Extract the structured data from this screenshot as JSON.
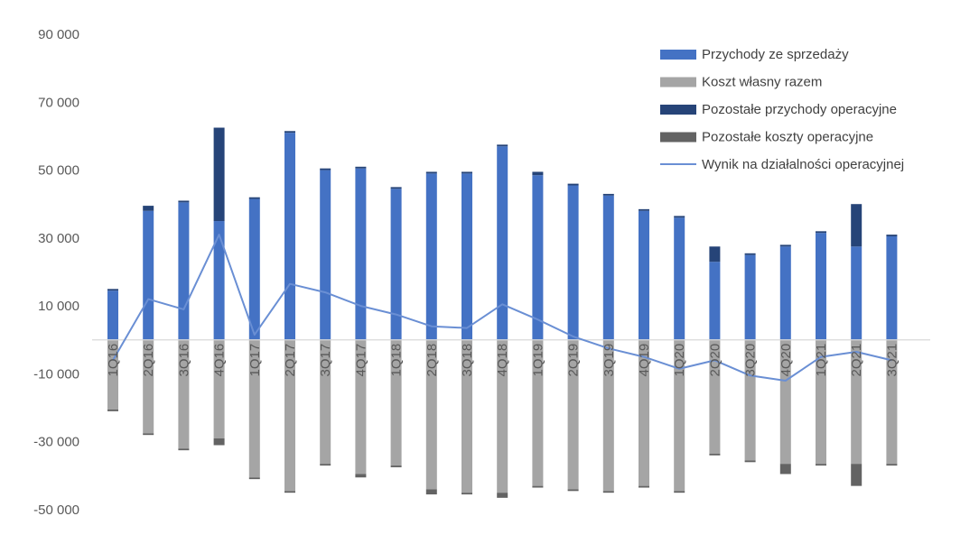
{
  "chart_data": {
    "type": "bar",
    "categories": [
      "1Q16",
      "2Q16",
      "3Q16",
      "4Q16",
      "1Q17",
      "2Q17",
      "3Q17",
      "4Q17",
      "1Q18",
      "2Q18",
      "3Q18",
      "4Q18",
      "1Q19",
      "2Q19",
      "3Q19",
      "4Q19",
      "1Q20",
      "2Q20",
      "3Q20",
      "4Q20",
      "1Q21",
      "2Q21",
      "3Q21"
    ],
    "ylim": [
      -50000,
      90000
    ],
    "yticks": [
      -50000,
      -30000,
      -10000,
      10000,
      30000,
      50000,
      70000,
      90000
    ],
    "ytick_labels": [
      "-50 000",
      "-30 000",
      "-10 000",
      "10 000",
      "30 000",
      "50 000",
      "70 000",
      "90 000"
    ],
    "legend_position": "top-right",
    "grid": false,
    "series": [
      {
        "name": "Przychody ze sprzedaży",
        "kind": "bar",
        "color": "#4472C4",
        "values": [
          14500,
          38000,
          40500,
          35000,
          41500,
          61000,
          50000,
          50500,
          44500,
          49000,
          49000,
          57000,
          48500,
          45500,
          42500,
          38000,
          36000,
          23000,
          25000,
          27500,
          31500,
          27500,
          30500
        ]
      },
      {
        "name": "Koszt własny razem",
        "kind": "bar",
        "color": "#A5A5A5",
        "values": [
          -20500,
          -27500,
          -32000,
          -29000,
          -40500,
          -44500,
          -36500,
          -39500,
          -37000,
          -44000,
          -45000,
          -45000,
          -43000,
          -44000,
          -44500,
          -43000,
          -44500,
          -33500,
          -35500,
          -36500,
          -36500,
          -36500,
          -36500
        ]
      },
      {
        "name": "Pozostałe przychody operacyjne",
        "kind": "bar",
        "color": "#264478",
        "values": [
          500,
          1500,
          500,
          27500,
          500,
          500,
          500,
          500,
          500,
          500,
          500,
          500,
          1000,
          500,
          500,
          500,
          500,
          4500,
          500,
          500,
          500,
          12500,
          500
        ]
      },
      {
        "name": "Pozostałe koszty operacyjne",
        "kind": "bar",
        "color": "#636363",
        "values": [
          -500,
          -500,
          -500,
          -2000,
          -500,
          -500,
          -500,
          -1000,
          -500,
          -1500,
          -500,
          -1500,
          -500,
          -500,
          -500,
          -500,
          -500,
          -500,
          -500,
          -3000,
          -500,
          -6500,
          -500
        ]
      },
      {
        "name": "Wynik na działalności operacyjnej",
        "kind": "line",
        "color": "#6A8FD4",
        "values": [
          -6000,
          12000,
          9000,
          31000,
          1500,
          16500,
          14000,
          10000,
          7500,
          4000,
          3500,
          10500,
          6000,
          1000,
          -2500,
          -5000,
          -8500,
          -6000,
          -10500,
          -12000,
          -5000,
          -3500,
          -6000
        ]
      }
    ]
  }
}
